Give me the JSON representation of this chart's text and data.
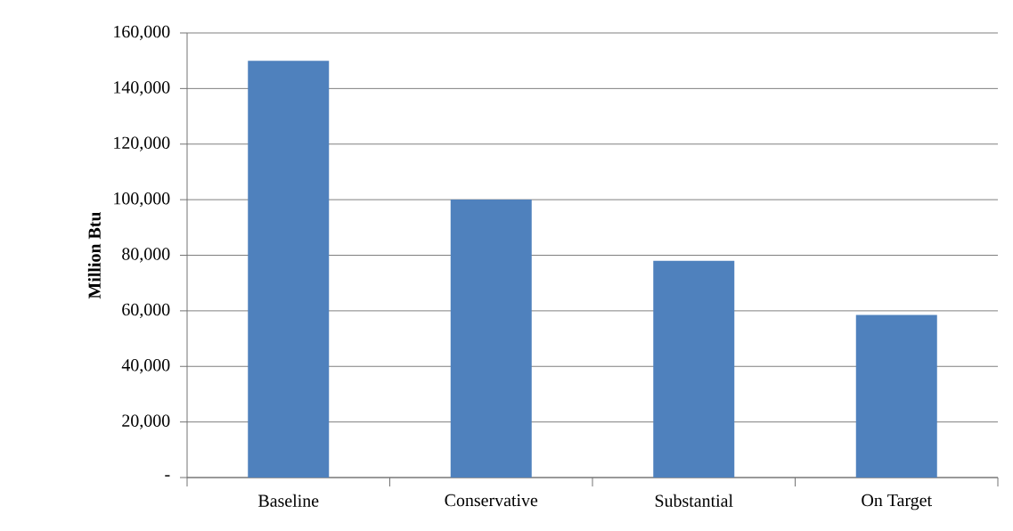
{
  "chart_data": {
    "type": "bar",
    "ylabel": "Million Btu",
    "categories": [
      "Baseline",
      "Conservative",
      "Substantial",
      "On Target"
    ],
    "values": [
      150000,
      100000,
      78000,
      58500
    ],
    "color": "#4f81bd",
    "ylim": [
      0,
      160000
    ],
    "yticks": [
      {
        "value": 0,
        "label": "-"
      },
      {
        "value": 20000,
        "label": "20,000"
      },
      {
        "value": 40000,
        "label": "40,000"
      },
      {
        "value": 60000,
        "label": "60,000"
      },
      {
        "value": 80000,
        "label": "80,000"
      },
      {
        "value": 100000,
        "label": "100,000"
      },
      {
        "value": 120000,
        "label": "120,000"
      },
      {
        "value": 140000,
        "label": "140,000"
      },
      {
        "value": 160000,
        "label": "160,000"
      }
    ],
    "grid": "y"
  }
}
